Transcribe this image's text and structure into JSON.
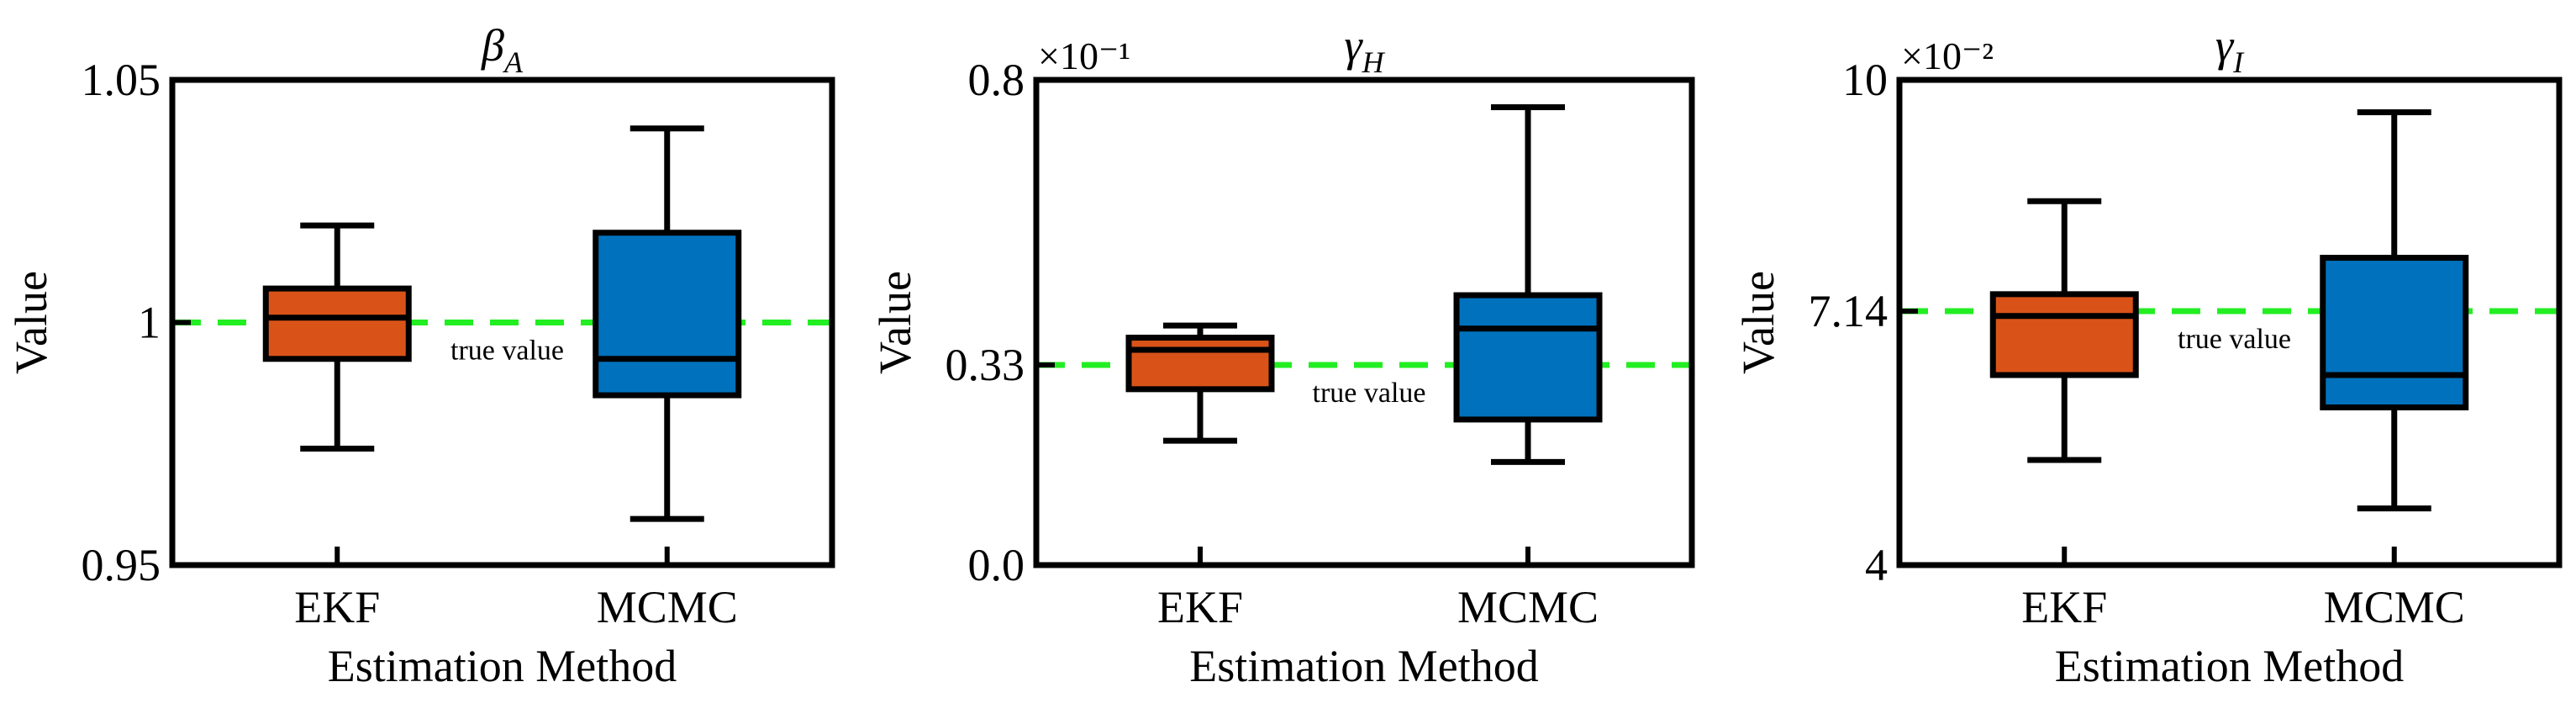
{
  "colors": {
    "ekf": "#D95319",
    "mcmc": "#0072BD",
    "true_line": "#22EE22",
    "frame": "#000000"
  },
  "chart_data": [
    {
      "type": "box",
      "title": "βA",
      "title_main": "β",
      "title_sub": "A",
      "xlabel": "Estimation Method",
      "ylabel": "Value",
      "scale_label": "",
      "categories": [
        "EKF",
        "MCMC"
      ],
      "ylim": [
        0.95,
        1.05
      ],
      "yticks": [
        0.95,
        1,
        1.05
      ],
      "ytick_labels": [
        "0.95",
        "1",
        "1.05"
      ],
      "true_value": 1,
      "annotation": "true value",
      "boxes": [
        {
          "name": "EKF",
          "whislo": 0.974,
          "q1": 0.9925,
          "med": 1.001,
          "q3": 1.007,
          "whishi": 1.02
        },
        {
          "name": "MCMC",
          "whislo": 0.9595,
          "q1": 0.985,
          "med": 0.9925,
          "q3": 1.0185,
          "whishi": 1.04
        }
      ]
    },
    {
      "type": "box",
      "title": "γH",
      "title_main": "γ",
      "title_sub": "H",
      "xlabel": "Estimation Method",
      "ylabel": "Value",
      "scale_label": "×10⁻¹",
      "categories": [
        "EKF",
        "MCMC"
      ],
      "ylim": [
        0.0,
        0.8
      ],
      "yticks": [
        0.0,
        0.33,
        0.8
      ],
      "ytick_labels": [
        "0.0",
        "0.33",
        "0.8"
      ],
      "true_value": 0.33,
      "annotation": "true value",
      "boxes": [
        {
          "name": "EKF",
          "whislo": 0.205,
          "q1": 0.29,
          "med": 0.355,
          "q3": 0.375,
          "whishi": 0.395
        },
        {
          "name": "MCMC",
          "whislo": 0.17,
          "q1": 0.24,
          "med": 0.39,
          "q3": 0.445,
          "whishi": 0.755
        }
      ]
    },
    {
      "type": "box",
      "title": "γI",
      "title_main": "γ",
      "title_sub": "I",
      "xlabel": "Estimation Method",
      "ylabel": "Value",
      "scale_label": "×10⁻²",
      "categories": [
        "EKF",
        "MCMC"
      ],
      "ylim": [
        4,
        10
      ],
      "yticks": [
        4,
        7.14,
        10
      ],
      "ytick_labels": [
        "4",
        "7.14",
        "10"
      ],
      "true_value": 7.14,
      "annotation": "true value",
      "boxes": [
        {
          "name": "EKF",
          "whislo": 5.3,
          "q1": 6.35,
          "med": 7.08,
          "q3": 7.35,
          "whishi": 8.5
        },
        {
          "name": "MCMC",
          "whislo": 4.7,
          "q1": 5.95,
          "med": 6.35,
          "q3": 7.8,
          "whishi": 9.6
        }
      ]
    }
  ]
}
